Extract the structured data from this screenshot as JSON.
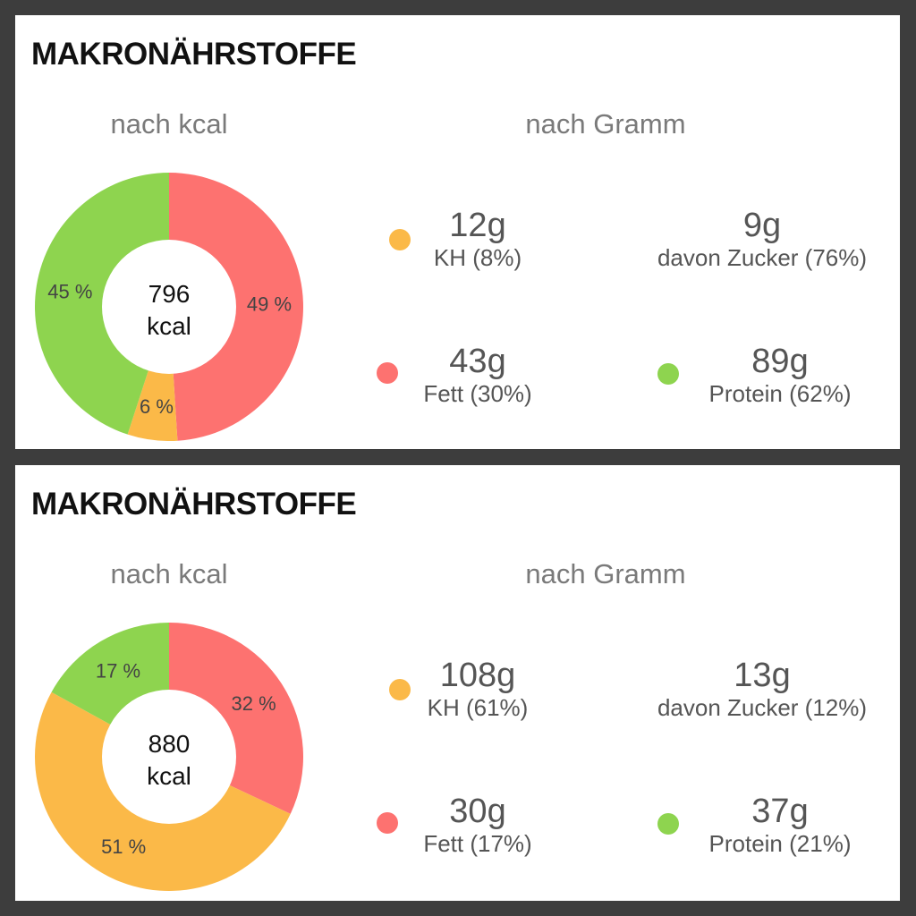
{
  "colors": {
    "background": "#3d3d3d",
    "panel": "#ffffff",
    "kh": "#fbb948",
    "fett": "#fd7270",
    "protein": "#8ed44f"
  },
  "panels": [
    {
      "title": "MAKRONÄHRSTOFFE",
      "kcal_heading": "nach kcal",
      "gramm_heading": "nach Gramm",
      "center": {
        "value": "796",
        "unit": "kcal"
      },
      "stats": [
        {
          "value": "12g",
          "label": "KH (8%)",
          "dot": "kh"
        },
        {
          "value": "9g",
          "label": "davon Zucker (76%)",
          "dot": null
        },
        {
          "value": "43g",
          "label": "Fett (30%)",
          "dot": "fett"
        },
        {
          "value": "89g",
          "label": "Protein (62%)",
          "dot": "protein"
        }
      ]
    },
    {
      "title": "MAKRONÄHRSTOFFE",
      "kcal_heading": "nach kcal",
      "gramm_heading": "nach Gramm",
      "center": {
        "value": "880",
        "unit": "kcal"
      },
      "stats": [
        {
          "value": "108g",
          "label": "KH (61%)",
          "dot": "kh"
        },
        {
          "value": "13g",
          "label": "davon Zucker (12%)",
          "dot": null
        },
        {
          "value": "30g",
          "label": "Fett (17%)",
          "dot": "fett"
        },
        {
          "value": "37g",
          "label": "Protein (21%)",
          "dot": "protein"
        }
      ]
    }
  ],
  "chart_data": [
    {
      "type": "pie",
      "donut": true,
      "start": "top",
      "direction": "clockwise",
      "series": [
        {
          "key": "fett",
          "value": 49,
          "label": "49 %"
        },
        {
          "key": "kh",
          "value": 6,
          "label": "6 %"
        },
        {
          "key": "protein",
          "value": 45,
          "label": "45 %"
        }
      ]
    },
    {
      "type": "pie",
      "donut": true,
      "start": "top",
      "direction": "clockwise",
      "series": [
        {
          "key": "fett",
          "value": 32,
          "label": "32 %"
        },
        {
          "key": "kh",
          "value": 51,
          "label": "51 %"
        },
        {
          "key": "protein",
          "value": 17,
          "label": "17 %"
        }
      ]
    }
  ]
}
